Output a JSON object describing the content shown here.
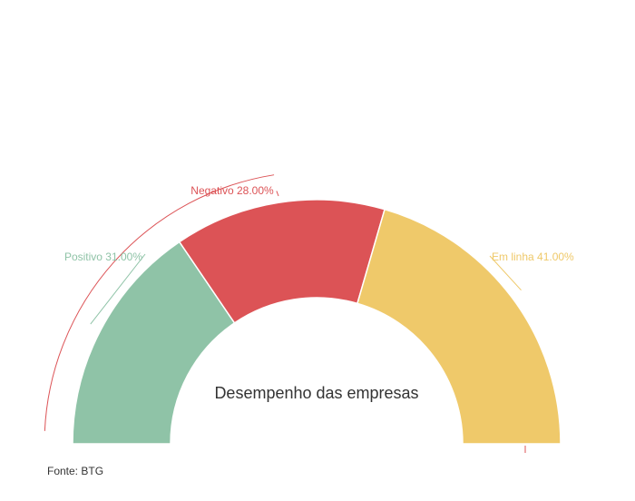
{
  "chart_data": {
    "type": "pie",
    "variant": "semi-donut",
    "center_label": "Desempenho das empresas",
    "slices": [
      {
        "name": "Positivo",
        "value": 31.0,
        "label": "Positivo 31.00%",
        "color": "#8fc3a7"
      },
      {
        "name": "Negativo",
        "value": 28.0,
        "label": "Negativo 28.00%",
        "color": "#dc5356"
      },
      {
        "name": "Em linha",
        "value": 41.0,
        "label": "Em linha 41.00%",
        "color": "#efc96a"
      }
    ]
  },
  "source": "Fonte: BTG"
}
